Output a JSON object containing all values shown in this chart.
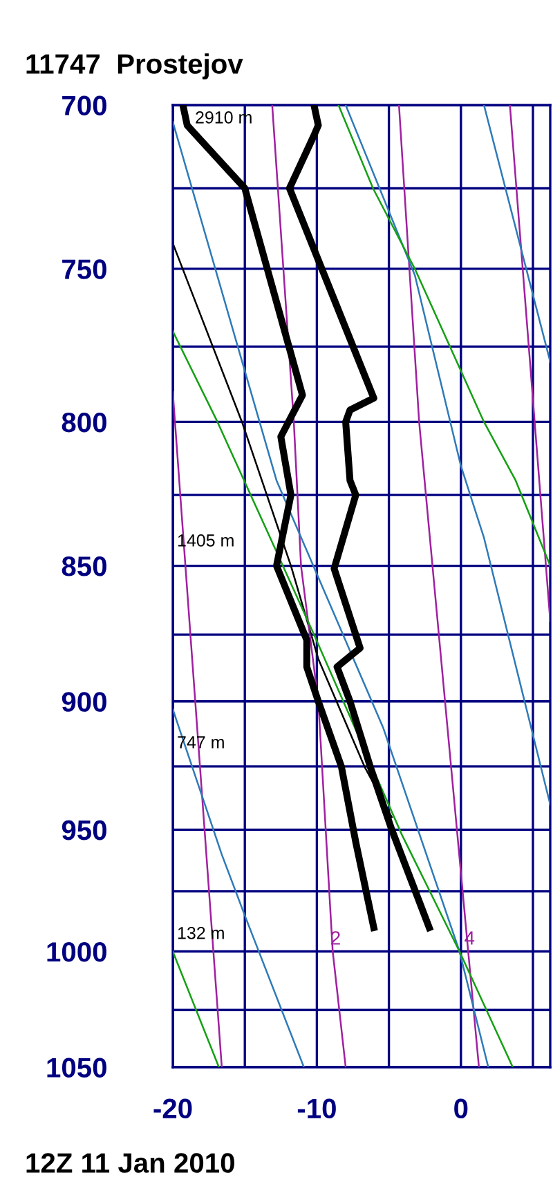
{
  "chart_data": {
    "type": "line",
    "title": "11747  Prostejov",
    "series": [
      {
        "color": "#000000",
        "x": [
          -10.2,
          -9.9,
          -10.2,
          -11.9,
          -6.05,
          -7.7,
          -8.0,
          -7.7,
          -7.3,
          -8.8,
          -7.0,
          -8.6,
          -7.7,
          -6.3,
          -4.8,
          -2.2
        ],
        "values": [
          700,
          706,
          709,
          725,
          792,
          796,
          800,
          820,
          825,
          851,
          880,
          887,
          900,
          925,
          950,
          990
        ]
      },
      {
        "color": "#000000",
        "x": [
          -19.3,
          -19.0,
          -15.0,
          -11.0,
          -12.5,
          -11.8,
          -12.8,
          -10.7,
          -10.7,
          -9.9,
          -8.3,
          -7.3,
          -6.05
        ],
        "values": [
          700,
          706,
          725,
          791,
          805,
          825,
          850,
          877,
          887,
          900,
          925,
          955,
          990
        ]
      },
      {
        "color": "#000000",
        "x": [
          -20,
          -15.2,
          -11.8,
          -9.9,
          -6.7,
          -4.8
        ],
        "values": [
          742,
          800,
          850,
          884,
          925,
          945
        ]
      },
      {
        "color": "#a020a0",
        "x": [
          -13.1,
          -11.6,
          -11.1,
          -9.9,
          -8.9,
          -8.0
        ],
        "values": [
          700,
          800,
          850,
          900,
          1000,
          1050
        ]
      },
      {
        "color": "#a020a0",
        "x": [
          -4.3,
          -2.9,
          1.25
        ],
        "values": [
          700,
          800,
          1050
        ]
      },
      {
        "color": "#a020a0",
        "x": [
          3.4,
          6.2
        ],
        "values": [
          700,
          870
        ]
      },
      {
        "color": "#a020a0",
        "x": [
          -20,
          -16.6
        ],
        "values": [
          790,
          1050
        ]
      },
      {
        "color": "#2e7ab8",
        "x": [
          -20,
          -12.8,
          -5.4,
          -0.1,
          1.9
        ],
        "values": [
          705,
          820,
          910,
          1000,
          1050
        ]
      },
      {
        "color": "#2e7ab8",
        "x": [
          -8.0,
          -3.2,
          0,
          1.6,
          6.2
        ],
        "values": [
          700,
          752,
          815,
          840,
          940
        ]
      },
      {
        "color": "#2e7ab8",
        "x": [
          1.6,
          6.2
        ],
        "values": [
          700,
          780
        ]
      },
      {
        "color": "#2e7ab8",
        "x": [
          -20,
          -16.6,
          -15,
          -10.9
        ],
        "values": [
          903,
          960,
          985,
          1050
        ]
      },
      {
        "color": "#14a014",
        "x": [
          -8.5,
          -6.1,
          -3.2,
          1.6,
          3.8,
          6.2
        ],
        "values": [
          700,
          725,
          750,
          800,
          820,
          850
        ]
      },
      {
        "color": "#14a014",
        "x": [
          -20,
          -16.9,
          -12.8,
          -10.2,
          -4.1,
          -0.1,
          3.6
        ],
        "values": [
          770,
          800,
          845,
          875,
          952,
          1000,
          1050
        ]
      },
      {
        "color": "#14a014",
        "x": [
          -20,
          -16.8
        ],
        "values": [
          1000,
          1050
        ]
      }
    ],
    "xlim": [
      -20,
      6.2
    ],
    "xticks": [
      -20,
      {
        "value": -15,
        "label": null
      },
      -10,
      {
        "value": -5,
        "label": null
      },
      0,
      {
        "value": 5,
        "label": null
      }
    ],
    "ylim": [
      1050,
      700
    ],
    "yticks": [
      700,
      {
        "value": 725,
        "label": null
      },
      750,
      {
        "value": 775,
        "label": null
      },
      800,
      {
        "value": 825,
        "label": null
      },
      850,
      {
        "value": 875,
        "label": null
      },
      900,
      {
        "value": 925,
        "label": null
      },
      950,
      {
        "value": 975,
        "label": null
      },
      1000,
      {
        "value": 1025,
        "label": null
      },
      1050
    ],
    "grid": true,
    "log": "y",
    "marker": "none",
    "line_style": "solid",
    "annotations": [
      "12Z 11 Jan 2010",
      "2910 m",
      "1405 m",
      "747 m",
      "132 m",
      {
        "text": "2",
        "x": -8.7,
        "y": 1000
      },
      {
        "text": "4",
        "x": 0.6,
        "y": 1000
      }
    ]
  }
}
